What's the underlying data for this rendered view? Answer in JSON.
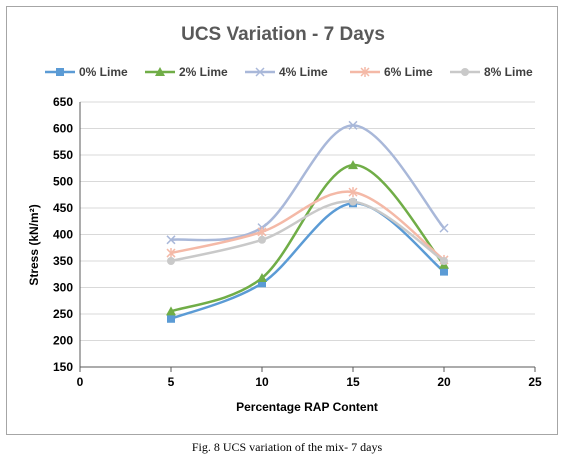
{
  "caption": "Fig. 8 UCS variation of the mix- 7 days",
  "chart_data": {
    "type": "line",
    "title": "UCS Variation - 7 Days",
    "xlabel": "Percentage RAP Content",
    "ylabel": "Stress (kN/m²)",
    "xlim": [
      0,
      25
    ],
    "ylim": [
      150,
      650
    ],
    "xticks": [
      "0",
      "5",
      "10",
      "15",
      "20",
      "25"
    ],
    "yticks": [
      "150",
      "200",
      "250",
      "300",
      "350",
      "400",
      "450",
      "500",
      "550",
      "600",
      "650"
    ],
    "grid": "horizontal",
    "legend_position": "top",
    "smooth": true,
    "x": [
      5,
      10,
      15,
      20
    ],
    "series": [
      {
        "name": "0% Lime",
        "color": "#5b9bd5",
        "marker": "square",
        "values": [
          241,
          308,
          459,
          330
        ]
      },
      {
        "name": "2% Lime",
        "color": "#70ad47",
        "marker": "triangle",
        "values": [
          255,
          318,
          531,
          343
        ]
      },
      {
        "name": "4% Lime",
        "color": "#a9b8d9",
        "marker": "x",
        "values": [
          390,
          413,
          606,
          412
        ]
      },
      {
        "name": "6% Lime",
        "color": "#f4b9a7",
        "marker": "star",
        "values": [
          365,
          405,
          480,
          352
        ]
      },
      {
        "name": "8% Lime",
        "color": "#c9c9c9",
        "marker": "circle",
        "values": [
          350,
          390,
          462,
          350
        ]
      }
    ]
  }
}
